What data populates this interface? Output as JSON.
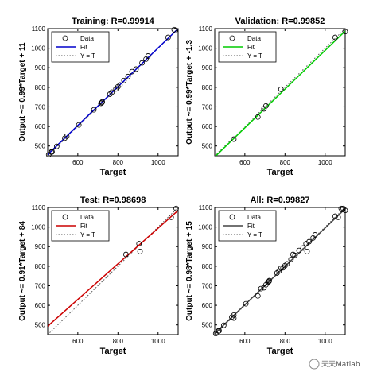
{
  "chart_data": [
    {
      "type": "scatter",
      "title": "Training: R=0.99914",
      "xlabel": "Target",
      "ylabel": "Output ~= 0.99*Target + 11",
      "xlim": [
        450,
        1100
      ],
      "ylim": [
        450,
        1100
      ],
      "xticks": [
        600,
        800,
        1000
      ],
      "yticks": [
        500,
        600,
        700,
        800,
        900,
        1000,
        1100
      ],
      "fit": {
        "slope": 0.99,
        "intercept": 11,
        "color": "#0000cc"
      },
      "legend": {
        "position": "top-left",
        "entries": [
          "Data",
          "Fit",
          "Y = T"
        ]
      },
      "grid": false,
      "points": [
        [
          455,
          455
        ],
        [
          468,
          469
        ],
        [
          472,
          470
        ],
        [
          495,
          498
        ],
        [
          535,
          540
        ],
        [
          545,
          550
        ],
        [
          605,
          608
        ],
        [
          680,
          685
        ],
        [
          715,
          718
        ],
        [
          720,
          722
        ],
        [
          722,
          726
        ],
        [
          760,
          765
        ],
        [
          770,
          775
        ],
        [
          790,
          792
        ],
        [
          800,
          803
        ],
        [
          810,
          812
        ],
        [
          830,
          835
        ],
        [
          850,
          855
        ],
        [
          870,
          880
        ],
        [
          890,
          893
        ],
        [
          920,
          925
        ],
        [
          940,
          944
        ],
        [
          950,
          960
        ],
        [
          1050,
          1055
        ],
        [
          1080,
          1095
        ],
        [
          1085,
          1090
        ]
      ]
    },
    {
      "type": "scatter",
      "title": "Validation: R=0.99852",
      "xlabel": "Target",
      "ylabel": "Output ~= 0.99*Target + -1.3",
      "xlim": [
        450,
        1100
      ],
      "ylim": [
        450,
        1100
      ],
      "xticks": [
        600,
        800,
        1000
      ],
      "yticks": [
        500,
        600,
        700,
        800,
        900,
        1000,
        1100
      ],
      "fit": {
        "slope": 0.99,
        "intercept": -1.3,
        "color": "#00cc00"
      },
      "legend": {
        "position": "top-left",
        "entries": [
          "Data",
          "Fit",
          "Y = T"
        ]
      },
      "grid": false,
      "points": [
        [
          545,
          535
        ],
        [
          665,
          648
        ],
        [
          695,
          690
        ],
        [
          705,
          705
        ],
        [
          780,
          790
        ],
        [
          1050,
          1055
        ],
        [
          1100,
          1085
        ]
      ]
    },
    {
      "type": "scatter",
      "title": "Test: R=0.98698",
      "xlabel": "Target",
      "ylabel": "Output ~= 0.91*Target + 84",
      "xlim": [
        450,
        1100
      ],
      "ylim": [
        450,
        1100
      ],
      "xticks": [
        600,
        800,
        1000
      ],
      "yticks": [
        500,
        600,
        700,
        800,
        900,
        1000,
        1100
      ],
      "fit": {
        "slope": 0.91,
        "intercept": 84,
        "color": "#cc0000"
      },
      "legend": {
        "position": "top-left",
        "entries": [
          "Data",
          "Fit",
          "Y = T"
        ]
      },
      "grid": false,
      "points": [
        [
          840,
          860
        ],
        [
          905,
          915
        ],
        [
          910,
          875
        ],
        [
          1065,
          1050
        ],
        [
          1090,
          1095
        ]
      ]
    },
    {
      "type": "scatter",
      "title": "All: R=0.99827",
      "xlabel": "Target",
      "ylabel": "Output ~= 0.98*Target + 15",
      "xlim": [
        450,
        1100
      ],
      "ylim": [
        450,
        1100
      ],
      "xticks": [
        600,
        800,
        1000
      ],
      "yticks": [
        500,
        600,
        700,
        800,
        900,
        1000,
        1100
      ],
      "fit": {
        "slope": 0.98,
        "intercept": 15,
        "color": "#444444"
      },
      "legend": {
        "position": "top-left",
        "entries": [
          "Data",
          "Fit",
          "Y = T"
        ]
      },
      "grid": false,
      "points": [
        [
          455,
          455
        ],
        [
          468,
          469
        ],
        [
          472,
          470
        ],
        [
          495,
          498
        ],
        [
          535,
          540
        ],
        [
          545,
          550
        ],
        [
          545,
          535
        ],
        [
          605,
          608
        ],
        [
          665,
          648
        ],
        [
          680,
          685
        ],
        [
          695,
          690
        ],
        [
          705,
          705
        ],
        [
          715,
          718
        ],
        [
          720,
          722
        ],
        [
          722,
          726
        ],
        [
          760,
          765
        ],
        [
          770,
          775
        ],
        [
          780,
          790
        ],
        [
          790,
          792
        ],
        [
          800,
          803
        ],
        [
          810,
          812
        ],
        [
          830,
          835
        ],
        [
          840,
          860
        ],
        [
          850,
          855
        ],
        [
          870,
          880
        ],
        [
          890,
          893
        ],
        [
          905,
          915
        ],
        [
          910,
          875
        ],
        [
          920,
          925
        ],
        [
          940,
          944
        ],
        [
          950,
          960
        ],
        [
          1050,
          1055
        ],
        [
          1065,
          1050
        ],
        [
          1080,
          1095
        ],
        [
          1085,
          1090
        ],
        [
          1090,
          1095
        ],
        [
          1100,
          1085
        ]
      ]
    }
  ],
  "watermark": {
    "text": "天天Matlab"
  }
}
